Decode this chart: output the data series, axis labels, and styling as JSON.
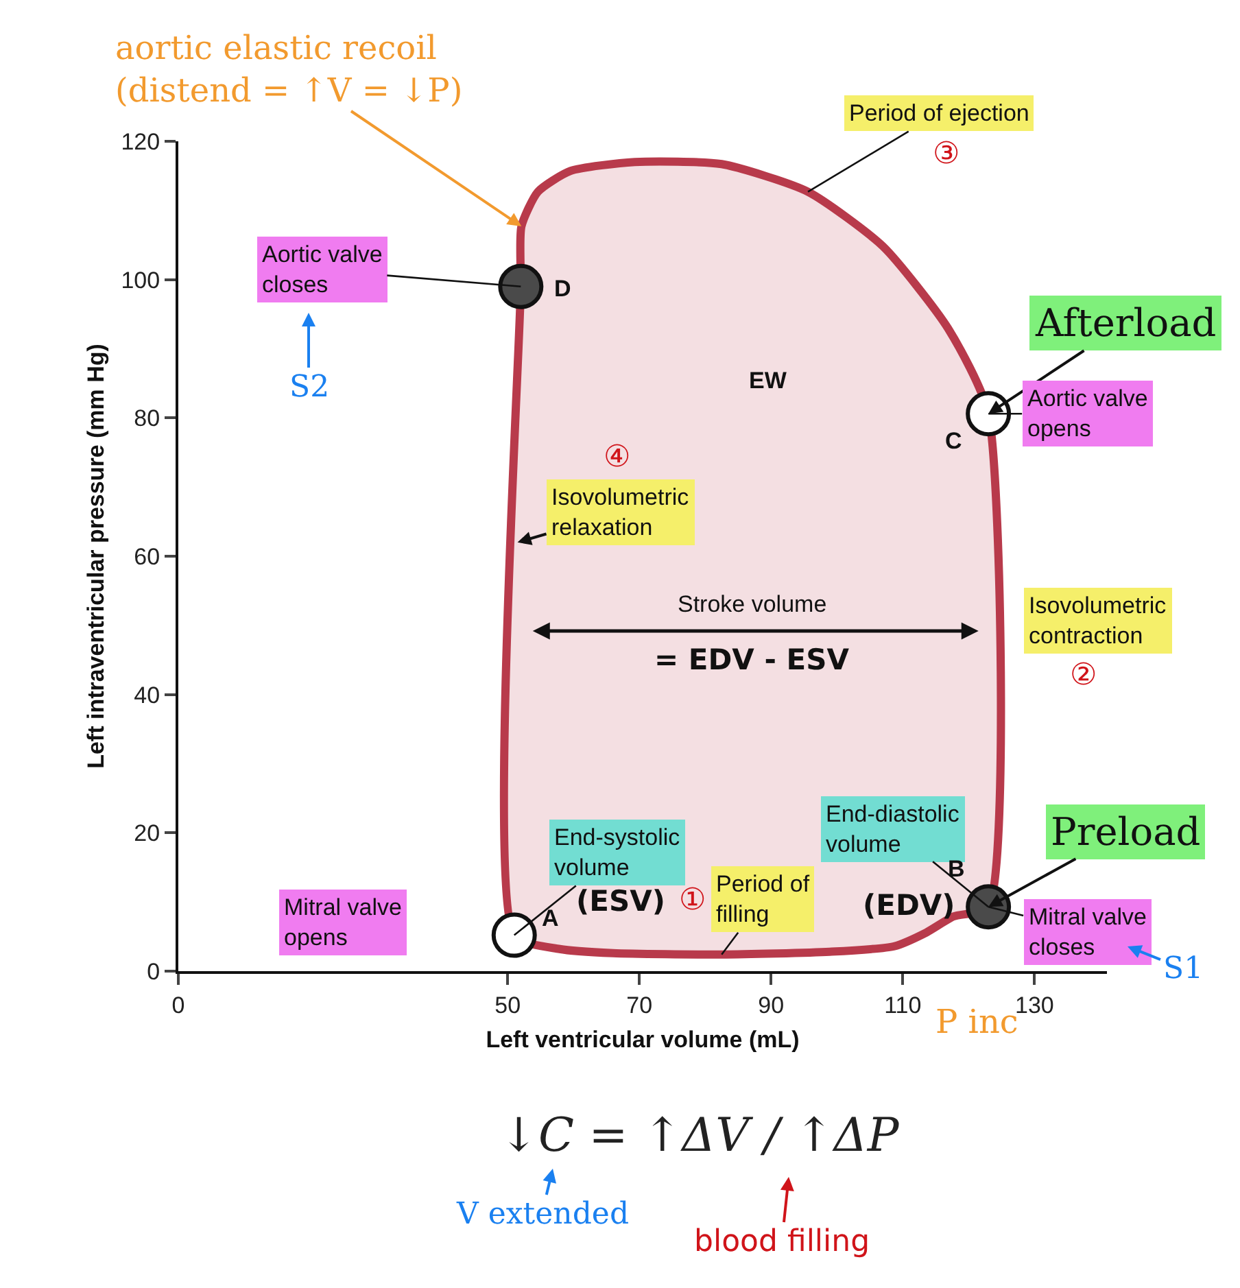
{
  "chart_data": {
    "type": "area",
    "xlabel": "Left ventricular volume (mL)",
    "ylabel": "Left intraventricular pressure (mm Hg)",
    "xlim": [
      0,
      141
    ],
    "xticks": [
      0,
      50,
      70,
      90,
      110,
      130
    ],
    "ylim": [
      0,
      120
    ],
    "yticks": [
      0,
      20,
      40,
      60,
      80,
      100,
      120
    ],
    "series": [
      {
        "color": "#b83a4b",
        "x": [
          51,
          57.9,
          66,
          82.5,
          98.9,
          108.7,
          113.6,
          117.7,
          123,
          123,
          116.9,
          107,
          95.6,
          82.5,
          69.3,
          59.5,
          54.6,
          52.1,
          52,
          51
        ],
        "values": [
          5.2,
          3.2,
          2.6,
          2.4,
          2.8,
          3.6,
          5.6,
          7.9,
          9.3,
          80.6,
          92.9,
          104.8,
          112.7,
          116.7,
          117,
          115.7,
          112.7,
          107.7,
          99,
          5.2
        ]
      },
      {
        "type": "scatter",
        "marker": "circle",
        "x": [
          51,
          123,
          123,
          52
        ],
        "values": [
          5.2,
          9.3,
          80.6,
          99
        ],
        "colors": [
          "#ffffff",
          "#4a4a4a",
          "#ffffff",
          "#4a4a4a"
        ]
      }
    ],
    "annotations": [
      {
        "text": "aortic elastic recoil\n(distend = ↑V = ↓P)",
        "x": 52.1,
        "y": 107.7
      },
      {
        "text": "Period of ejection",
        "x": 95.6,
        "y": 112.7
      },
      "③",
      {
        "text": "Aortic valve\ncloses",
        "x": 52,
        "y": 99
      },
      {
        "text": "D",
        "x": 52,
        "y": 99
      },
      "S2",
      "EW",
      {
        "text": "Afterload",
        "x": 123,
        "y": 80.6
      },
      {
        "text": "C",
        "x": 123,
        "y": 80.6
      },
      {
        "text": "Aortic valve\nopens",
        "x": 123,
        "y": 80.6
      },
      "④",
      {
        "text": "Isovolumetric\nrelaxation",
        "x": 51.5,
        "y": 62
      },
      "Stroke volume",
      "= EDV - ESV",
      "Isovolumetric\ncontraction",
      "②",
      {
        "text": "End-systolic\nvolume",
        "x": 51,
        "y": 5.2
      },
      "(ESV)",
      "①",
      {
        "text": "Period of\nfilling",
        "x": 82.5,
        "y": 2.4
      },
      {
        "text": "End-diastolic\nvolume",
        "x": 123,
        "y": 9.3
      },
      "(EDV)",
      {
        "text": "B",
        "x": 123,
        "y": 9.3
      },
      {
        "text": "Preload",
        "x": 123,
        "y": 9.3
      },
      "Mitral valve\nopens",
      {
        "text": "A",
        "x": 51,
        "y": 5.2
      },
      {
        "text": "Mitral valve\ncloses",
        "x": 123,
        "y": 9.3
      },
      "S1",
      "P inc",
      "↓C = ↑ΔV / ↑ΔP",
      "V extended",
      "blood filling"
    ]
  }
}
